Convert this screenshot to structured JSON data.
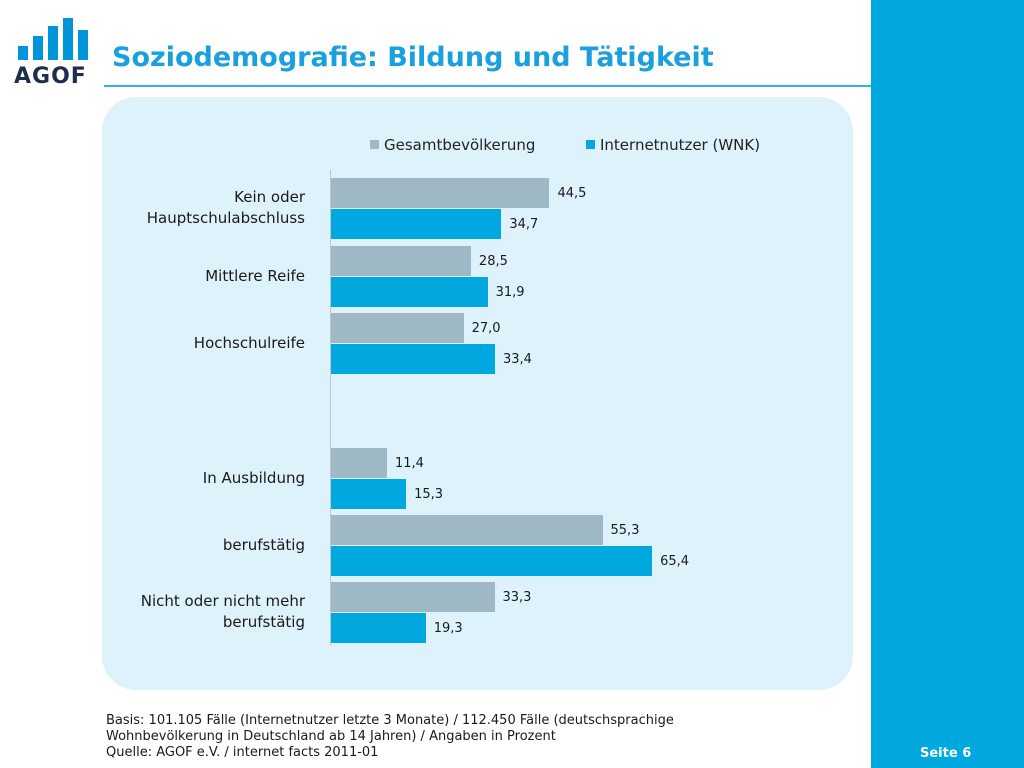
{
  "header": {
    "logo_text": "AGOF",
    "title": "Soziodemografie: Bildung und Tätigkeit"
  },
  "colors": {
    "accent": "#00a8e0",
    "gesamt": "#9fb8c6",
    "internet": "#00a8e0",
    "panel": "#def2fc"
  },
  "chart_data": {
    "type": "bar",
    "orientation": "horizontal",
    "title": "",
    "xlabel": "",
    "ylabel": "",
    "xlim": [
      0,
      70
    ],
    "grid": false,
    "legend_position": "top",
    "categories": [
      [
        "Kein oder",
        "Hauptschulabschluss"
      ],
      [
        "Mittlere Reife"
      ],
      [
        "Hochschulreife"
      ],
      [
        "In Ausbildung"
      ],
      [
        "berufstätig"
      ],
      [
        "Nicht oder nicht mehr",
        "berufstätig"
      ]
    ],
    "series": [
      {
        "name": "Gesamtbevölkerung",
        "values": [
          44.5,
          28.5,
          27.0,
          11.4,
          55.3,
          33.3
        ],
        "labels": [
          "44,5",
          "28,5",
          "27,0",
          "11,4",
          "55,3",
          "33,3"
        ]
      },
      {
        "name": "Internetnutzer (WNK)",
        "values": [
          34.7,
          31.9,
          33.4,
          15.3,
          65.4,
          19.3
        ],
        "labels": [
          "34,7",
          "31,9",
          "33,4",
          "15,3",
          "65,4",
          "19,3"
        ]
      }
    ]
  },
  "footnote": {
    "line1": "Basis: 101.105 Fälle (Internetnutzer letzte 3 Monate) / 112.450 Fälle (deutschsprachige",
    "line2": "Wohnbevölkerung in Deutschland ab 14 Jahren) / Angaben in Prozent",
    "line3": "Quelle: AGOF e.V. / internet facts 2011-01"
  },
  "page": {
    "number_label": "Seite 6"
  }
}
